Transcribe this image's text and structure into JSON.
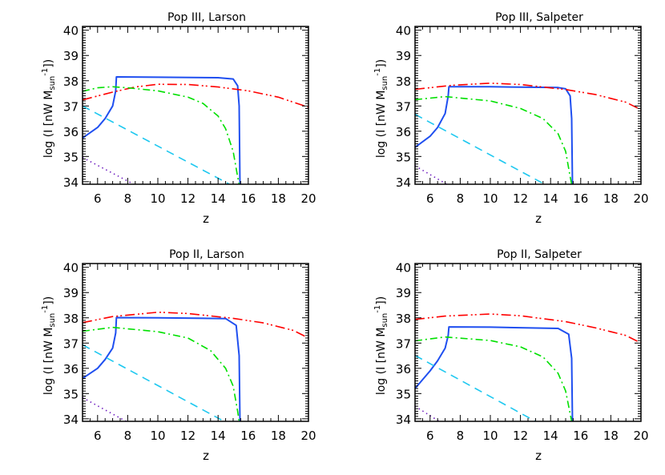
{
  "chart_data": [
    {
      "type": "line",
      "title": "Pop III, Larson",
      "xlabel": "z",
      "ylabel": {
        "main": "log (I [nW M",
        "sub": "sun",
        "sup": "-1",
        "end": "])"
      },
      "xlim": [
        5,
        20
      ],
      "ylim": [
        33.9,
        40.15
      ],
      "xticks": [
        "6",
        "8",
        "10",
        "12",
        "14",
        "16",
        "18",
        "20"
      ],
      "yticks": [
        "34",
        "35",
        "36",
        "37",
        "38",
        "39",
        "40"
      ],
      "grid": false,
      "series": [
        {
          "color": "#1f4ff0",
          "style": "solid",
          "x": [
            5,
            6,
            6.5,
            7,
            7.2,
            7.25,
            10,
            14,
            15,
            15.3,
            15.4,
            15.45
          ],
          "y": [
            35.73,
            36.15,
            36.5,
            37.0,
            37.6,
            38.15,
            38.14,
            38.12,
            38.07,
            37.8,
            37.0,
            33.9
          ]
        },
        {
          "color": "#ff0000",
          "style": "dash-dot-dot",
          "x": [
            5,
            7,
            8.5,
            10,
            12,
            14,
            16,
            18,
            20
          ],
          "y": [
            37.24,
            37.55,
            37.75,
            37.86,
            37.85,
            37.75,
            37.6,
            37.35,
            36.95
          ]
        },
        {
          "color": "#00e000",
          "style": "dash-dot",
          "x": [
            5,
            6,
            7,
            8,
            10,
            12,
            13,
            14,
            14.5,
            15,
            15.3,
            15.4
          ],
          "y": [
            37.58,
            37.72,
            37.76,
            37.72,
            37.6,
            37.35,
            37.1,
            36.6,
            36.1,
            35.2,
            34.2,
            33.9
          ]
        },
        {
          "color": "#1ec8f0",
          "style": "dashed",
          "x": [
            5,
            14.75
          ],
          "y": [
            37.0,
            33.9
          ]
        },
        {
          "color": "#7020c0",
          "style": "dotted",
          "x": [
            5,
            8.4
          ],
          "y": [
            34.96,
            33.9
          ]
        }
      ]
    },
    {
      "type": "line",
      "title": "Pop III, Salpeter",
      "xlabel": "z",
      "ylabel": {
        "main": "log (I [nW M",
        "sub": "sun",
        "sup": "-1",
        "end": "])"
      },
      "xlim": [
        5,
        20
      ],
      "ylim": [
        33.9,
        40.15
      ],
      "xticks": [
        "6",
        "8",
        "10",
        "12",
        "14",
        "16",
        "18",
        "20"
      ],
      "yticks": [
        "34",
        "35",
        "36",
        "37",
        "38",
        "39",
        "40"
      ],
      "grid": false,
      "series": [
        {
          "color": "#1f4ff0",
          "style": "solid",
          "x": [
            5,
            6,
            6.5,
            7,
            7.2,
            7.25,
            10,
            14.5,
            15,
            15.3,
            15.4,
            15.45
          ],
          "y": [
            35.36,
            35.8,
            36.15,
            36.7,
            37.4,
            37.76,
            37.76,
            37.73,
            37.68,
            37.4,
            36.5,
            33.9
          ]
        },
        {
          "color": "#ff0000",
          "style": "dash-dot-dot",
          "x": [
            5,
            7.5,
            10,
            12,
            15,
            17,
            19,
            20
          ],
          "y": [
            37.66,
            37.82,
            37.9,
            37.85,
            37.65,
            37.45,
            37.15,
            36.85
          ]
        },
        {
          "color": "#00e000",
          "style": "dash-dot",
          "x": [
            5,
            7,
            10,
            12,
            13.5,
            14.5,
            15,
            15.3,
            15.4
          ],
          "y": [
            37.25,
            37.37,
            37.2,
            36.9,
            36.5,
            35.9,
            35.2,
            34.2,
            33.9
          ]
        },
        {
          "color": "#1ec8f0",
          "style": "dashed",
          "x": [
            5,
            13.6
          ],
          "y": [
            36.67,
            33.9
          ]
        },
        {
          "color": "#7020c0",
          "style": "dotted",
          "x": [
            5,
            7.1
          ],
          "y": [
            34.63,
            33.9
          ]
        }
      ]
    },
    {
      "type": "line",
      "title": "Pop II, Larson",
      "xlabel": "z",
      "ylabel": {
        "main": "log (I [nW M",
        "sub": "sun",
        "sup": "-1",
        "end": "])"
      },
      "xlim": [
        5,
        20
      ],
      "ylim": [
        33.9,
        40.15
      ],
      "xticks": [
        "6",
        "8",
        "10",
        "12",
        "14",
        "16",
        "18",
        "20"
      ],
      "yticks": [
        "34",
        "35",
        "36",
        "37",
        "38",
        "39",
        "40"
      ],
      "grid": false,
      "series": [
        {
          "color": "#1f4ff0",
          "style": "solid",
          "x": [
            5,
            6,
            6.5,
            7,
            7.2,
            7.25,
            10,
            14.5,
            15.2,
            15.4,
            15.45
          ],
          "y": [
            35.6,
            36.0,
            36.35,
            36.8,
            37.4,
            38.01,
            38.0,
            37.97,
            37.7,
            36.5,
            33.9
          ]
        },
        {
          "color": "#ff0000",
          "style": "dash-dot-dot",
          "x": [
            5,
            7,
            10,
            12,
            15,
            17,
            19,
            20
          ],
          "y": [
            37.81,
            38.05,
            38.22,
            38.17,
            37.98,
            37.8,
            37.5,
            37.2
          ]
        },
        {
          "color": "#00e000",
          "style": "dash-dot",
          "x": [
            5,
            7,
            10,
            12,
            13.5,
            14.5,
            15,
            15.3,
            15.4
          ],
          "y": [
            37.47,
            37.62,
            37.45,
            37.2,
            36.7,
            36.0,
            35.3,
            34.3,
            33.9
          ]
        },
        {
          "color": "#1ec8f0",
          "style": "dashed",
          "x": [
            5,
            14.4
          ],
          "y": [
            36.93,
            33.9
          ]
        },
        {
          "color": "#7020c0",
          "style": "dotted",
          "x": [
            5,
            7.9
          ],
          "y": [
            34.84,
            33.9
          ]
        }
      ]
    },
    {
      "type": "line",
      "title": "Pop II, Salpeter",
      "xlabel": "z",
      "ylabel": {
        "main": "log (I [nW M",
        "sub": "sun",
        "sup": "-1",
        "end": "])"
      },
      "xlim": [
        5,
        20
      ],
      "ylim": [
        33.9,
        40.15
      ],
      "xticks": [
        "6",
        "8",
        "10",
        "12",
        "14",
        "16",
        "18",
        "20"
      ],
      "yticks": [
        "34",
        "35",
        "36",
        "37",
        "38",
        "39",
        "40"
      ],
      "grid": false,
      "series": [
        {
          "color": "#1f4ff0",
          "style": "solid",
          "x": [
            5,
            6,
            6.5,
            7,
            7.2,
            7.25,
            10,
            14.5,
            15.2,
            15.4,
            15.45
          ],
          "y": [
            35.2,
            35.9,
            36.3,
            36.8,
            37.3,
            37.64,
            37.63,
            37.58,
            37.35,
            36.4,
            33.9
          ]
        },
        {
          "color": "#ff0000",
          "style": "dash-dot-dot",
          "x": [
            5,
            7,
            10,
            12,
            15,
            17,
            19,
            20
          ],
          "y": [
            37.94,
            38.07,
            38.15,
            38.08,
            37.85,
            37.6,
            37.3,
            37.0
          ]
        },
        {
          "color": "#00e000",
          "style": "dash-dot",
          "x": [
            5,
            7,
            10,
            12,
            13.5,
            14.5,
            15,
            15.3,
            15.4
          ],
          "y": [
            37.09,
            37.24,
            37.1,
            36.85,
            36.45,
            35.8,
            35.1,
            34.2,
            33.9
          ]
        },
        {
          "color": "#1ec8f0",
          "style": "dashed",
          "x": [
            5,
            13.0
          ],
          "y": [
            36.51,
            33.9
          ]
        },
        {
          "color": "#7020c0",
          "style": "dotted",
          "x": [
            5,
            6.6
          ],
          "y": [
            34.5,
            33.9
          ]
        }
      ]
    }
  ]
}
